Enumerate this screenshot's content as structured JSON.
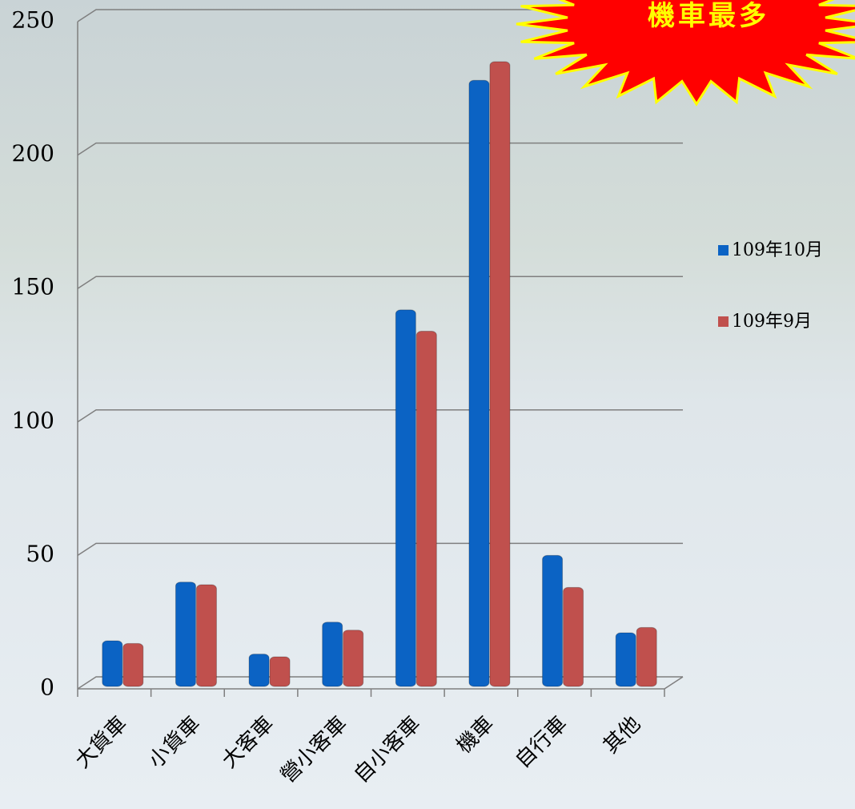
{
  "chart_data": {
    "type": "bar",
    "annotation": "機車最多",
    "categories": [
      "大貨車",
      "小貨車",
      "大客車",
      "營小客車",
      "自小客車",
      "機車",
      "自行車",
      "其他"
    ],
    "series": [
      {
        "name": "109年10月",
        "color": "#0b63c4",
        "values": [
          18,
          40,
          13,
          25,
          142,
          228,
          50,
          21
        ]
      },
      {
        "name": "109年9月",
        "color": "#c0504d",
        "values": [
          17,
          39,
          12,
          22,
          134,
          235,
          38,
          23
        ]
      }
    ],
    "ylim": [
      0,
      250
    ],
    "yticks": [
      0,
      50,
      100,
      150,
      200,
      250
    ],
    "grid": true
  }
}
